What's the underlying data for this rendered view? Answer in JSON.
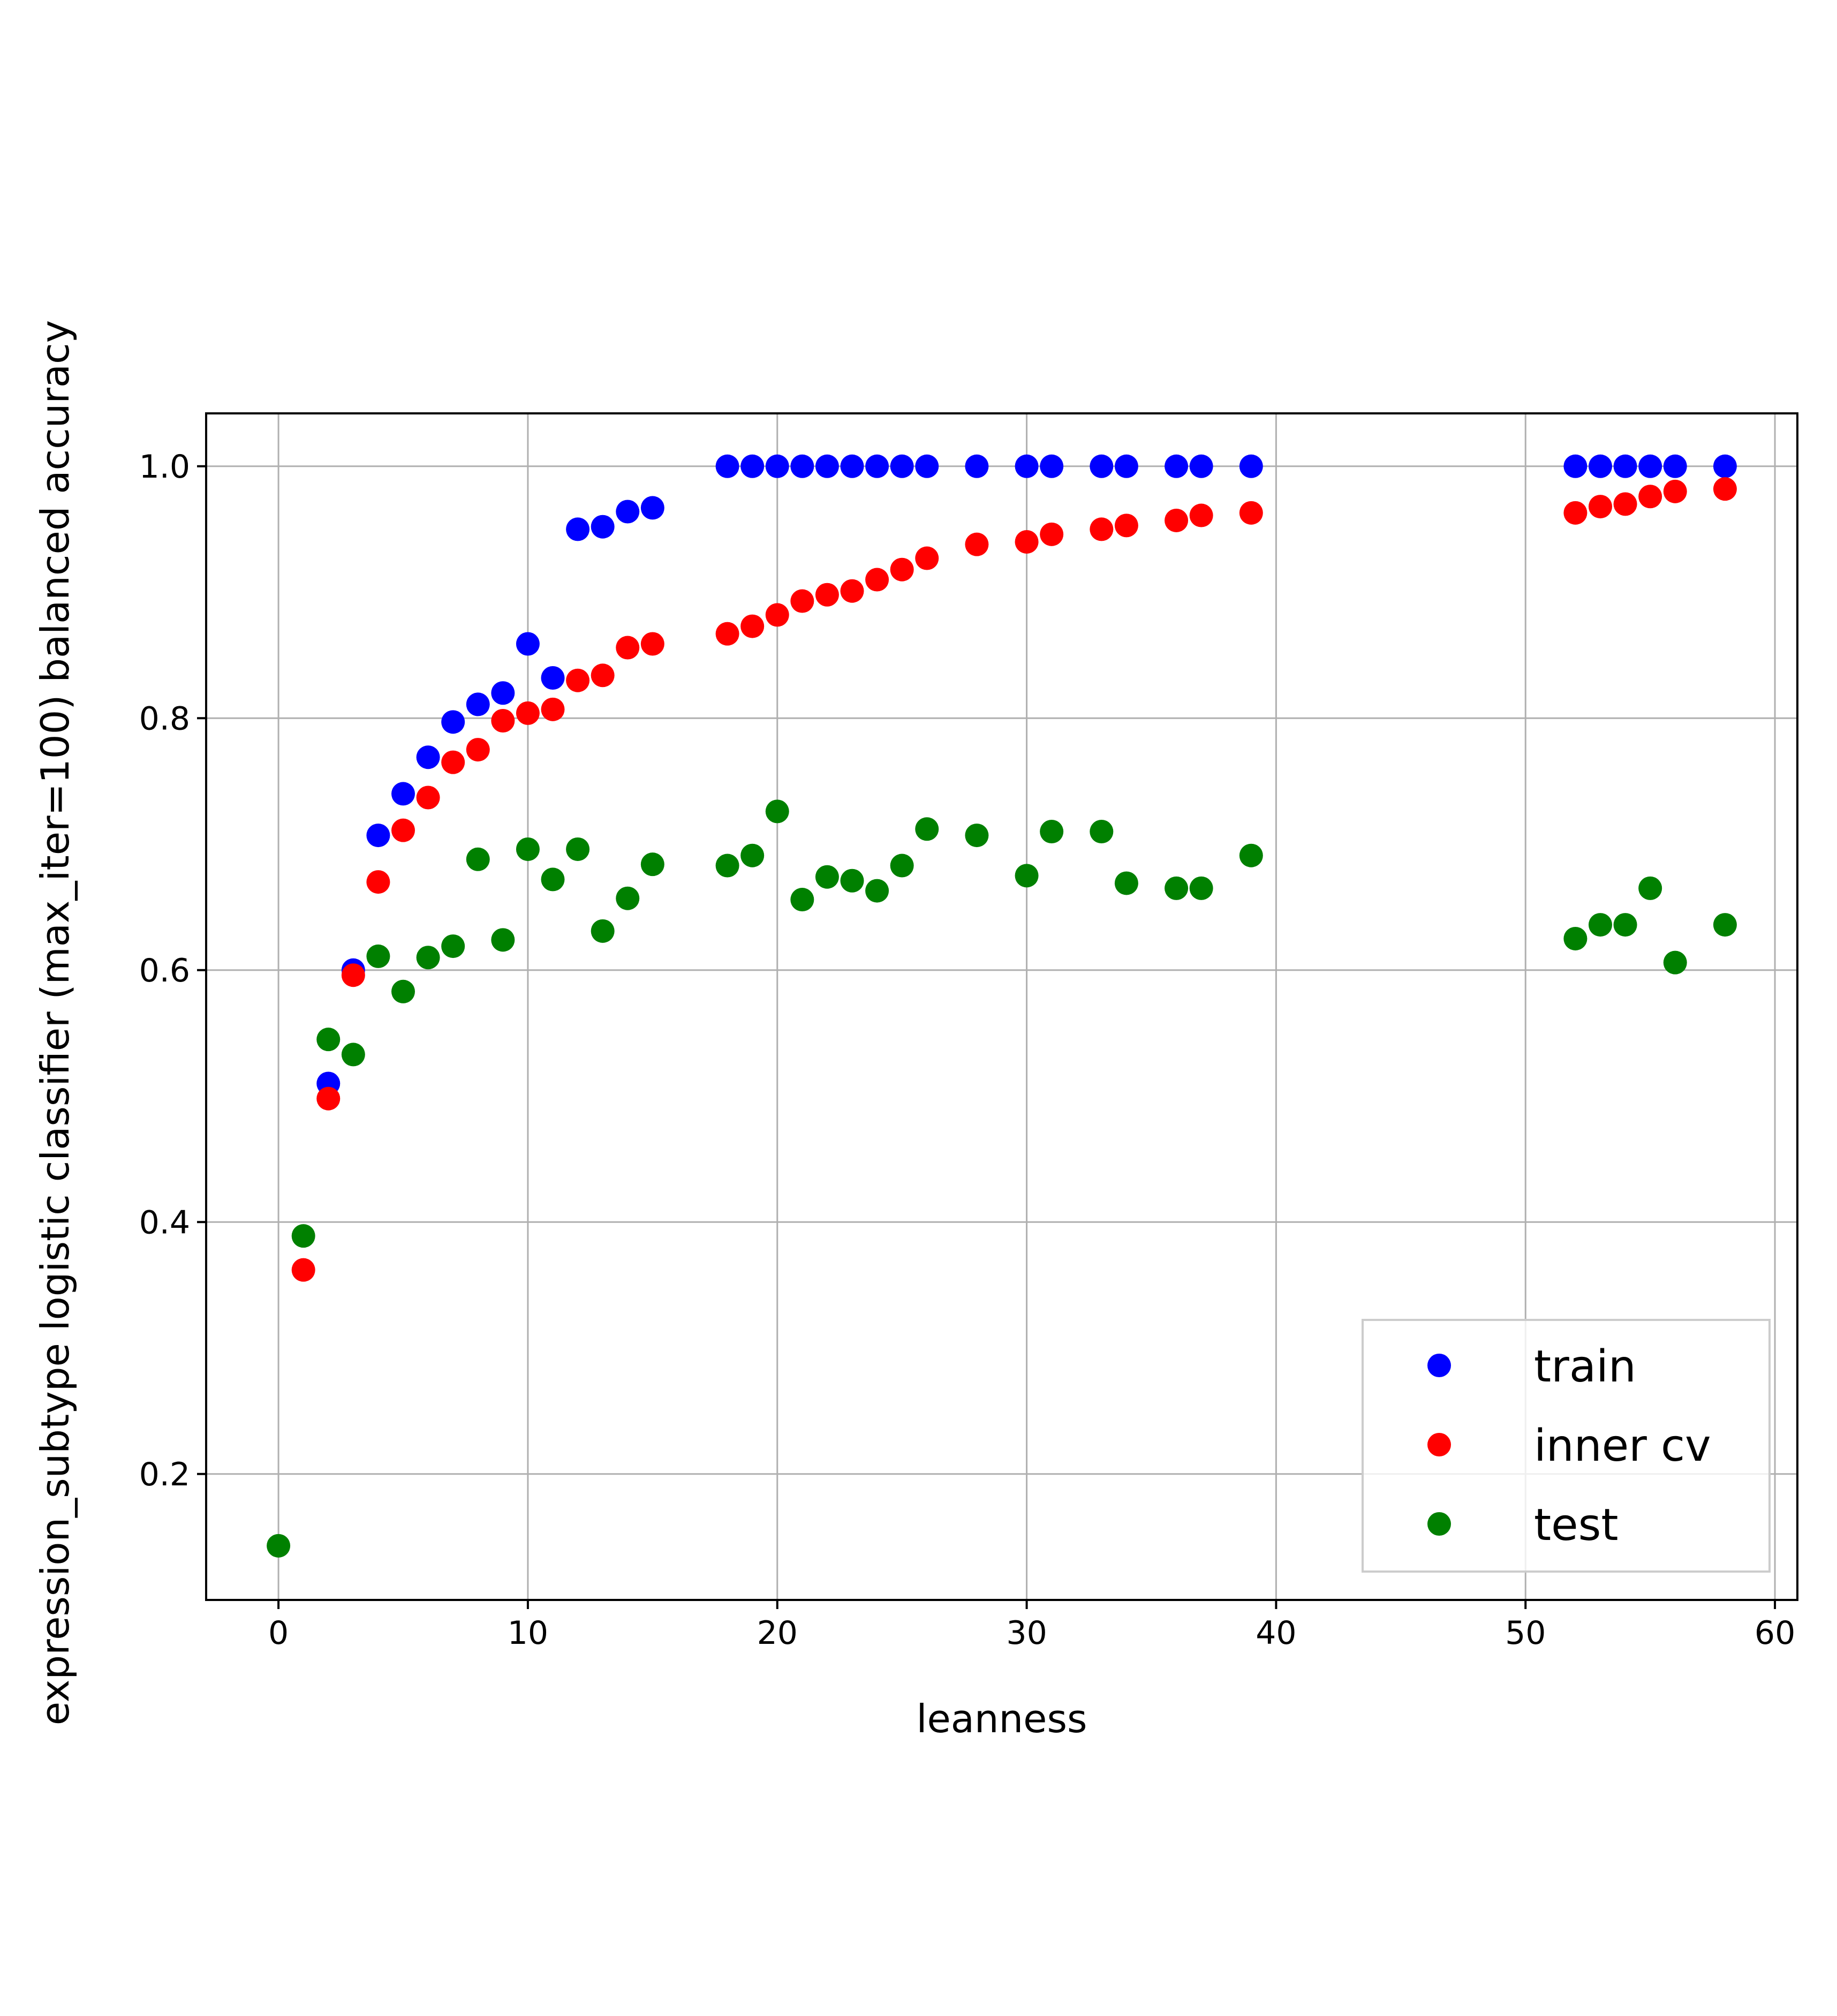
{
  "chart_data": {
    "type": "scatter",
    "title": "",
    "xlabel": "leanness",
    "ylabel": "expression_subtype logistic classifier (max_iter=100) balanced accuracy",
    "xlim": [
      -2.9,
      60.9
    ],
    "ylim": [
      0.1,
      1.042
    ],
    "xticks": [
      0,
      10,
      20,
      30,
      40,
      50,
      60
    ],
    "yticks": [
      0.2,
      0.4,
      0.6,
      0.8,
      1.0
    ],
    "xtick_labels": [
      "0",
      "10",
      "20",
      "30",
      "40",
      "50",
      "60"
    ],
    "ytick_labels": [
      "0.2",
      "0.4",
      "0.6",
      "0.8",
      "1.0"
    ],
    "grid": true,
    "legend_position": "bottom-right",
    "series": [
      {
        "name": "train",
        "color": "#0000ff",
        "points": [
          [
            2,
            0.51
          ],
          [
            3,
            0.6
          ],
          [
            4,
            0.707
          ],
          [
            5,
            0.74
          ],
          [
            6,
            0.769
          ],
          [
            7,
            0.797
          ],
          [
            8,
            0.811
          ],
          [
            9,
            0.82
          ],
          [
            10,
            0.859
          ],
          [
            11,
            0.832
          ],
          [
            12,
            0.95
          ],
          [
            13,
            0.952
          ],
          [
            14,
            0.964
          ],
          [
            15,
            0.967
          ],
          [
            18,
            1.0
          ],
          [
            19,
            1.0
          ],
          [
            20,
            1.0
          ],
          [
            21,
            1.0
          ],
          [
            22,
            1.0
          ],
          [
            23,
            1.0
          ],
          [
            24,
            1.0
          ],
          [
            25,
            1.0
          ],
          [
            26,
            1.0
          ],
          [
            28,
            1.0
          ],
          [
            30,
            1.0
          ],
          [
            31,
            1.0
          ],
          [
            33,
            1.0
          ],
          [
            34,
            1.0
          ],
          [
            36,
            1.0
          ],
          [
            37,
            1.0
          ],
          [
            39,
            1.0
          ],
          [
            52,
            1.0
          ],
          [
            53,
            1.0
          ],
          [
            54,
            1.0
          ],
          [
            55,
            1.0
          ],
          [
            56,
            1.0
          ],
          [
            58,
            1.0
          ]
        ]
      },
      {
        "name": "inner cv",
        "color": "#ff0000",
        "points": [
          [
            1,
            0.362
          ],
          [
            2,
            0.498
          ],
          [
            3,
            0.596
          ],
          [
            4,
            0.67
          ],
          [
            5,
            0.711
          ],
          [
            6,
            0.737
          ],
          [
            7,
            0.765
          ],
          [
            8,
            0.775
          ],
          [
            9,
            0.798
          ],
          [
            10,
            0.804
          ],
          [
            11,
            0.807
          ],
          [
            12,
            0.83
          ],
          [
            13,
            0.834
          ],
          [
            14,
            0.856
          ],
          [
            15,
            0.859
          ],
          [
            18,
            0.867
          ],
          [
            19,
            0.873
          ],
          [
            20,
            0.882
          ],
          [
            21,
            0.893
          ],
          [
            22,
            0.898
          ],
          [
            23,
            0.901
          ],
          [
            24,
            0.91
          ],
          [
            25,
            0.918
          ],
          [
            26,
            0.927
          ],
          [
            28,
            0.938
          ],
          [
            30,
            0.94
          ],
          [
            31,
            0.946
          ],
          [
            33,
            0.95
          ],
          [
            34,
            0.953
          ],
          [
            36,
            0.957
          ],
          [
            37,
            0.961
          ],
          [
            39,
            0.963
          ],
          [
            52,
            0.963
          ],
          [
            53,
            0.968
          ],
          [
            54,
            0.97
          ],
          [
            55,
            0.976
          ],
          [
            56,
            0.98
          ],
          [
            58,
            0.982
          ]
        ]
      },
      {
        "name": "test",
        "color": "#008000",
        "points": [
          [
            0,
            0.143
          ],
          [
            1,
            0.389
          ],
          [
            2,
            0.545
          ],
          [
            3,
            0.533
          ],
          [
            4,
            0.611
          ],
          [
            5,
            0.583
          ],
          [
            6,
            0.61
          ],
          [
            7,
            0.619
          ],
          [
            8,
            0.688
          ],
          [
            9,
            0.624
          ],
          [
            10,
            0.696
          ],
          [
            11,
            0.672
          ],
          [
            12,
            0.696
          ],
          [
            13,
            0.631
          ],
          [
            14,
            0.657
          ],
          [
            15,
            0.684
          ],
          [
            18,
            0.683
          ],
          [
            19,
            0.691
          ],
          [
            20,
            0.726
          ],
          [
            21,
            0.656
          ],
          [
            22,
            0.674
          ],
          [
            23,
            0.671
          ],
          [
            24,
            0.663
          ],
          [
            25,
            0.683
          ],
          [
            26,
            0.712
          ],
          [
            28,
            0.707
          ],
          [
            30,
            0.675
          ],
          [
            31,
            0.71
          ],
          [
            33,
            0.71
          ],
          [
            34,
            0.669
          ],
          [
            36,
            0.665
          ],
          [
            37,
            0.665
          ],
          [
            39,
            0.691
          ],
          [
            52,
            0.625
          ],
          [
            53,
            0.636
          ],
          [
            54,
            0.636
          ],
          [
            55,
            0.665
          ],
          [
            56,
            0.606
          ],
          [
            58,
            0.636
          ]
        ]
      }
    ]
  }
}
